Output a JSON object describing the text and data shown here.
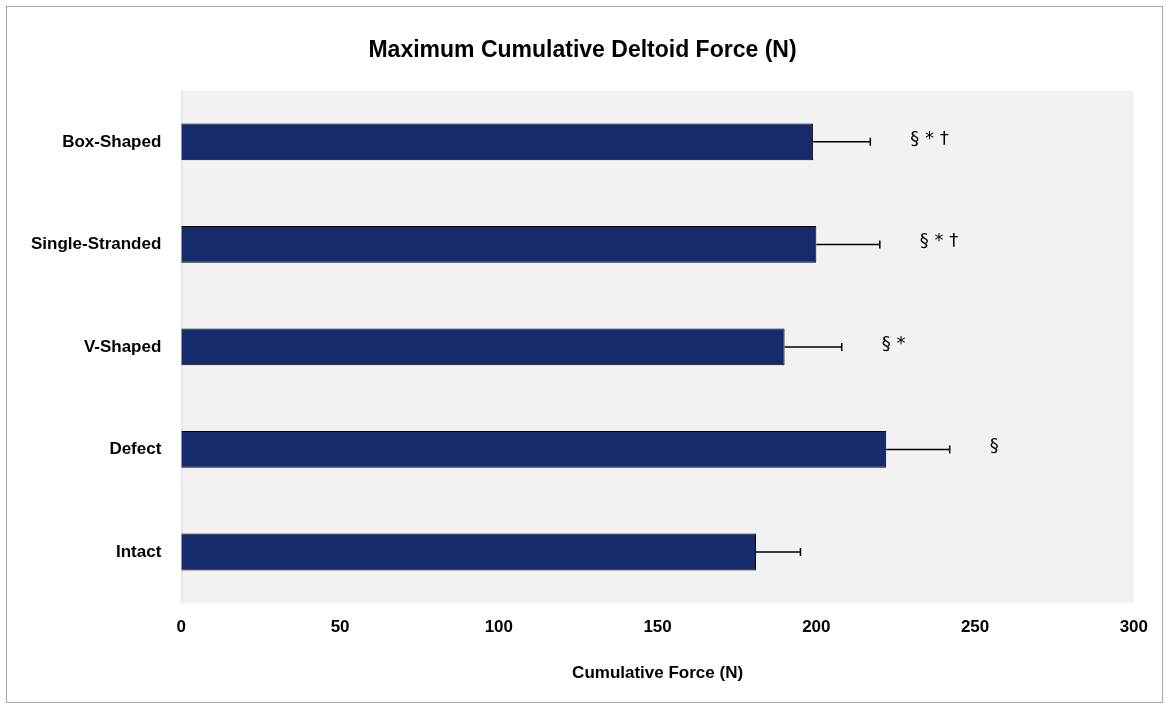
{
  "chart_data": {
    "type": "bar",
    "orientation": "horizontal",
    "title": "Maximum Cumulative Deltoid Force (N)",
    "xlabel": "Cumulative Force (N)",
    "categories": [
      "Box-Shaped",
      "Single-Stranded",
      "V-Shaped",
      "Defect",
      "Intact"
    ],
    "values": [
      199,
      200,
      190,
      222,
      181
    ],
    "errors": [
      [
        199,
        217
      ],
      [
        200,
        220
      ],
      [
        190,
        208
      ],
      [
        222,
        242
      ],
      [
        181,
        195
      ]
    ],
    "color": "#172a6b",
    "xlim": [
      0,
      300
    ],
    "xticks": [
      0,
      50,
      100,
      150,
      200,
      250,
      300
    ],
    "grid": false,
    "legend": false,
    "annotations": [
      "§ * †",
      "§ * †",
      "§ *",
      "§"
    ]
  }
}
